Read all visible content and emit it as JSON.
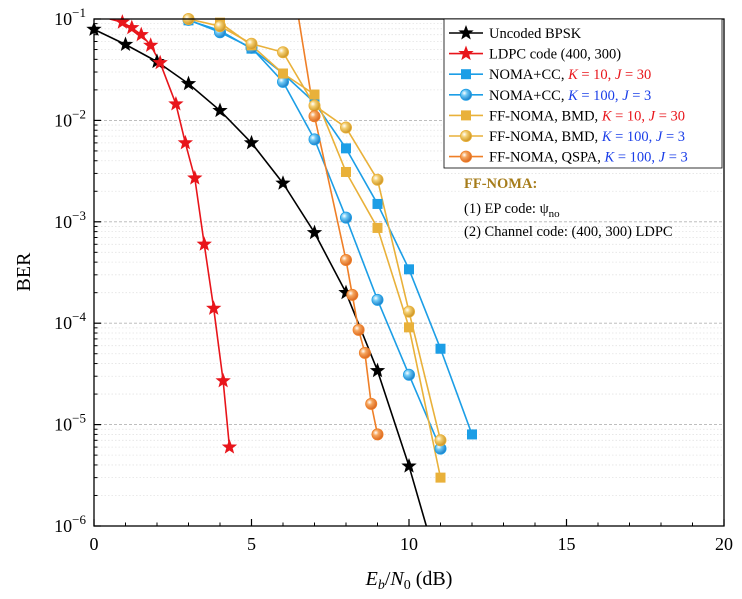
{
  "chart_data": {
    "type": "line",
    "title": "",
    "xlabel": {
      "main": "E",
      "sub1": "b",
      "slash": "/",
      "main2": "N",
      "sub2": "0",
      "unit": " (dB)"
    },
    "ylabel": "BER",
    "xlim": [
      0,
      20
    ],
    "ylim": [
      1e-06,
      0.1
    ],
    "yscale": "log",
    "x_ticks": [
      "0",
      "5",
      "10",
      "15",
      "20"
    ],
    "x_tick_values": [
      0,
      5,
      10,
      15,
      20
    ],
    "y_ticks": [
      {
        "value": 1e-06,
        "base": "10",
        "exp": "−6"
      },
      {
        "value": 1e-05,
        "base": "10",
        "exp": "−5"
      },
      {
        "value": 0.0001,
        "base": "10",
        "exp": "−4"
      },
      {
        "value": 0.001,
        "base": "10",
        "exp": "−3"
      },
      {
        "value": 0.01,
        "base": "10",
        "exp": "−2"
      },
      {
        "value": 0.1,
        "base": "10",
        "exp": "−1"
      }
    ],
    "grid": "horizontal-dashed",
    "legend_position": "top-right",
    "series": [
      {
        "name": "Uncoded BPSK",
        "legend": [
          {
            "t": "Uncoded BPSK",
            "c": "#000000"
          }
        ],
        "color": "#000000",
        "marker": "star",
        "x": [
          0,
          1,
          2,
          3,
          4,
          5,
          6,
          7,
          8,
          9,
          10,
          10.55
        ],
        "y": [
          0.079,
          0.056,
          0.038,
          0.023,
          0.0125,
          0.006,
          0.0024,
          0.00078,
          0.0002,
          3.4e-05,
          3.9e-06,
          1e-06
        ],
        "markers_until": 11
      },
      {
        "name": "LDPC code (400, 300)",
        "legend": [
          {
            "t": "LDPC code (400, 300)",
            "c": "#000000"
          }
        ],
        "color": "#e8151b",
        "marker": "star",
        "x": [
          0.5,
          0.9,
          1.2,
          1.5,
          1.8,
          2.1,
          2.6,
          2.9,
          3.2,
          3.5,
          3.8,
          4.1,
          4.3
        ],
        "y": [
          0.1,
          0.093,
          0.082,
          0.07,
          0.055,
          0.037,
          0.0145,
          0.006,
          0.0027,
          0.0006,
          0.00014,
          2.7e-05,
          6e-06
        ],
        "markers_from": 1
      },
      {
        "name": "NOMA+CC, K = 10, J = 30",
        "legend": [
          {
            "t": "NOMA+CC, ",
            "c": "#000000"
          },
          {
            "t": "K",
            "c": "#e8151b",
            "i": true
          },
          {
            "t": " = 10, ",
            "c": "#e8151b"
          },
          {
            "t": "J",
            "c": "#e8151b",
            "i": true
          },
          {
            "t": " = 30",
            "c": "#e8151b"
          }
        ],
        "color": "#1c9ee6",
        "marker": "square",
        "x": [
          3,
          4,
          5,
          6,
          7,
          8,
          9,
          10,
          11,
          12
        ],
        "y": [
          0.097,
          0.077,
          0.051,
          0.029,
          0.015,
          0.0053,
          0.0015,
          0.00034,
          5.6e-05,
          8e-06
        ]
      },
      {
        "name": "NOMA+CC, K = 100, J = 3",
        "legend": [
          {
            "t": "NOMA+CC, ",
            "c": "#000000"
          },
          {
            "t": "K",
            "c": "#1a3ee8",
            "i": true
          },
          {
            "t": " = 100, ",
            "c": "#1a3ee8"
          },
          {
            "t": "J",
            "c": "#1a3ee8",
            "i": true
          },
          {
            "t": " = 3",
            "c": "#1a3ee8"
          }
        ],
        "color": "#1c9ee6",
        "marker": "sphere",
        "x": [
          3,
          4,
          5,
          6,
          7,
          8,
          9,
          10,
          11
        ],
        "y": [
          0.098,
          0.074,
          0.052,
          0.024,
          0.0065,
          0.0011,
          0.00017,
          3.1e-05,
          5.8e-06
        ]
      },
      {
        "name": "FF-NOMA, BMD, K = 10, J = 30",
        "legend": [
          {
            "t": "FF-NOMA, BMD,  ",
            "c": "#000000"
          },
          {
            "t": "K",
            "c": "#e8151b",
            "i": true
          },
          {
            "t": " = 10, ",
            "c": "#e8151b"
          },
          {
            "t": "J",
            "c": "#e8151b",
            "i": true
          },
          {
            "t": " = 30",
            "c": "#e8151b"
          }
        ],
        "color": "#e9b13a",
        "marker": "square",
        "x": [
          4,
          5,
          6,
          7,
          8,
          9,
          10,
          11
        ],
        "y": [
          0.092,
          0.055,
          0.029,
          0.018,
          0.0031,
          0.00087,
          9.1e-05,
          3e-06
        ]
      },
      {
        "name": "FF-NOMA, BMD, K = 100, J = 3",
        "legend": [
          {
            "t": "FF-NOMA, BMD,  ",
            "c": "#000000"
          },
          {
            "t": "K",
            "c": "#1a3ee8",
            "i": true
          },
          {
            "t": " = 100, ",
            "c": "#1a3ee8"
          },
          {
            "t": "J",
            "c": "#1a3ee8",
            "i": true
          },
          {
            "t": " = 3",
            "c": "#1a3ee8"
          }
        ],
        "color": "#e9b13a",
        "marker": "sphere",
        "x": [
          3,
          4,
          5,
          6,
          7,
          8,
          9,
          10,
          11
        ],
        "y": [
          0.1,
          0.085,
          0.057,
          0.047,
          0.014,
          0.0085,
          0.0026,
          0.00013,
          7e-06
        ]
      },
      {
        "name": "FF-NOMA, QSPA, K = 100, J = 3",
        "legend": [
          {
            "t": "FF-NOMA, QSPA, ",
            "c": "#000000"
          },
          {
            "t": "K",
            "c": "#1a3ee8",
            "i": true
          },
          {
            "t": " = 100, ",
            "c": "#1a3ee8"
          },
          {
            "t": "J",
            "c": "#1a3ee8",
            "i": true
          },
          {
            "t": " = 3",
            "c": "#1a3ee8"
          }
        ],
        "color": "#ef7f27",
        "marker": "sphere",
        "x": [
          6.5,
          7,
          8,
          8.2,
          8.4,
          8.6,
          8.8,
          9
        ],
        "y": [
          0.1,
          0.011,
          0.00042,
          0.00019,
          8.6e-05,
          5.1e-05,
          1.6e-05,
          8e-06
        ],
        "markers_from": 1
      }
    ],
    "annotation": {
      "title": "FF-NOMA:",
      "title_color": "#a67c1a",
      "line1_prefix": "(1) EP code: ",
      "line1_symbol": "ψ",
      "line1_sub": "no",
      "line2": "(2) Channel code: (400, 300) LDPC"
    }
  }
}
